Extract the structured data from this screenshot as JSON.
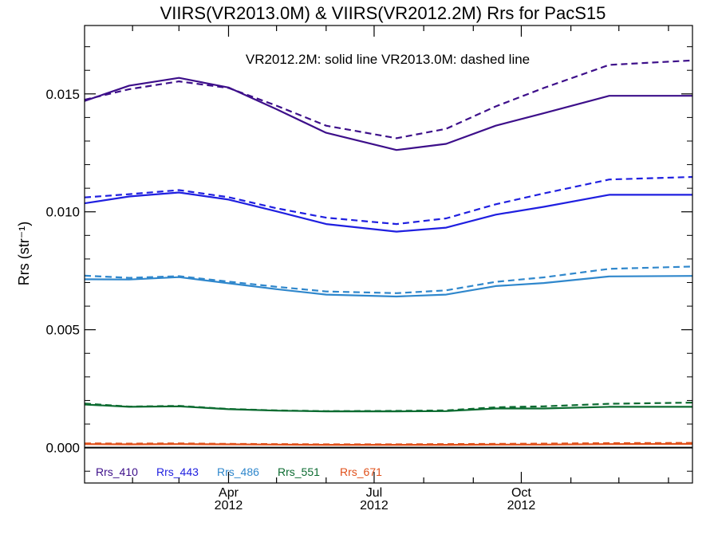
{
  "chart_data": {
    "type": "line",
    "title": "VIIRS(VR2013.0M) & VIIRS(VR2012.2M)  Rrs for PacS15",
    "ylabel": "Rrs (str⁻¹)",
    "xlabel": "",
    "annotation": "VR2012.2M: solid line   VR2013.0M: dashed line",
    "ylim": [
      -0.0015,
      0.0179
    ],
    "xlim": [
      "2012-01-02",
      "2013-01-16"
    ],
    "grid": false,
    "yticks": [
      {
        "value": 0.0,
        "label": "0.000"
      },
      {
        "value": 0.005,
        "label": "0.005"
      },
      {
        "value": 0.01,
        "label": "0.010"
      },
      {
        "value": 0.015,
        "label": "0.015"
      }
    ],
    "xticks": [
      {
        "date": "2012-04-01",
        "month": "Apr",
        "year": "2012"
      },
      {
        "date": "2012-07-01",
        "month": "Jul",
        "year": "2012"
      },
      {
        "date": "2012-10-01",
        "month": "Oct",
        "year": "2012"
      }
    ],
    "zero_line": 0.0,
    "x": [
      "2012-01-02",
      "2012-01-30",
      "2012-03-01",
      "2012-04-01",
      "2012-05-01",
      "2012-06-01",
      "2012-07-15",
      "2012-08-15",
      "2012-09-15",
      "2012-10-15",
      "2012-11-25",
      "2013-01-16"
    ],
    "series": [
      {
        "name": "Rrs_410",
        "color": "#3d0f8a",
        "dash": "solid",
        "values": [
          0.0147,
          0.01535,
          0.01568,
          0.01527,
          0.01435,
          0.01335,
          0.01262,
          0.01288,
          0.01365,
          0.01418,
          0.01492,
          0.01492
        ]
      },
      {
        "name": "Rrs_410",
        "color": "#3d0f8a",
        "dash": "dashed",
        "values": [
          0.01475,
          0.0152,
          0.01553,
          0.01525,
          0.0145,
          0.01365,
          0.01312,
          0.01352,
          0.01447,
          0.01525,
          0.01623,
          0.01642
        ]
      },
      {
        "name": "Rrs_443",
        "color": "#1f1fe0",
        "dash": "solid",
        "values": [
          0.01036,
          0.01065,
          0.01082,
          0.01052,
          0.01002,
          0.00948,
          0.00916,
          0.00933,
          0.00988,
          0.01021,
          0.01072,
          0.01072
        ]
      },
      {
        "name": "Rrs_443",
        "color": "#1f1fe0",
        "dash": "dashed",
        "values": [
          0.01061,
          0.01075,
          0.01092,
          0.01062,
          0.01015,
          0.00975,
          0.00948,
          0.00972,
          0.01032,
          0.01078,
          0.01137,
          0.01148
        ]
      },
      {
        "name": "Rrs_486",
        "color": "#2f87cc",
        "dash": "solid",
        "values": [
          0.00714,
          0.00713,
          0.00723,
          0.00697,
          0.00672,
          0.00649,
          0.00641,
          0.00649,
          0.00685,
          0.00698,
          0.00726,
          0.00728
        ]
      },
      {
        "name": "Rrs_486",
        "color": "#2f87cc",
        "dash": "dashed",
        "values": [
          0.00729,
          0.0072,
          0.00727,
          0.00704,
          0.00682,
          0.00662,
          0.00655,
          0.00667,
          0.00703,
          0.00722,
          0.00758,
          0.00768
        ]
      },
      {
        "name": "Rrs_551",
        "color": "#0b6b30",
        "dash": "solid",
        "values": [
          0.00183,
          0.00173,
          0.00175,
          0.00163,
          0.00157,
          0.00154,
          0.00154,
          0.00155,
          0.00166,
          0.00166,
          0.00173,
          0.00173
        ]
      },
      {
        "name": "Rrs_551",
        "color": "#0b6b30",
        "dash": "dashed",
        "values": [
          0.00187,
          0.00174,
          0.00177,
          0.00164,
          0.00158,
          0.00155,
          0.00156,
          0.00158,
          0.00171,
          0.00175,
          0.00186,
          0.00191
        ]
      },
      {
        "name": "Rrs_671",
        "color": "#e0501a",
        "dash": "solid",
        "values": [
          0.00015,
          0.00014,
          0.00015,
          0.00014,
          0.00013,
          0.00012,
          0.00012,
          0.00012,
          0.00013,
          0.00013,
          0.00015,
          0.00016
        ]
      },
      {
        "name": "Rrs_671",
        "color": "#e0501a",
        "dash": "dashed",
        "values": [
          0.00018,
          0.00017,
          0.00018,
          0.00016,
          0.00015,
          0.00014,
          0.00014,
          0.00015,
          0.00016,
          0.00017,
          0.00019,
          0.0002
        ]
      }
    ],
    "legend": {
      "placement": "bottom-left",
      "items": [
        {
          "label": "Rrs_410",
          "color": "#3d0f8a"
        },
        {
          "label": "Rrs_443",
          "color": "#1f1fe0"
        },
        {
          "label": "Rrs_486",
          "color": "#2f87cc"
        },
        {
          "label": "Rrs_551",
          "color": "#0b6b30"
        },
        {
          "label": "Rrs_671",
          "color": "#e0501a"
        }
      ]
    }
  }
}
